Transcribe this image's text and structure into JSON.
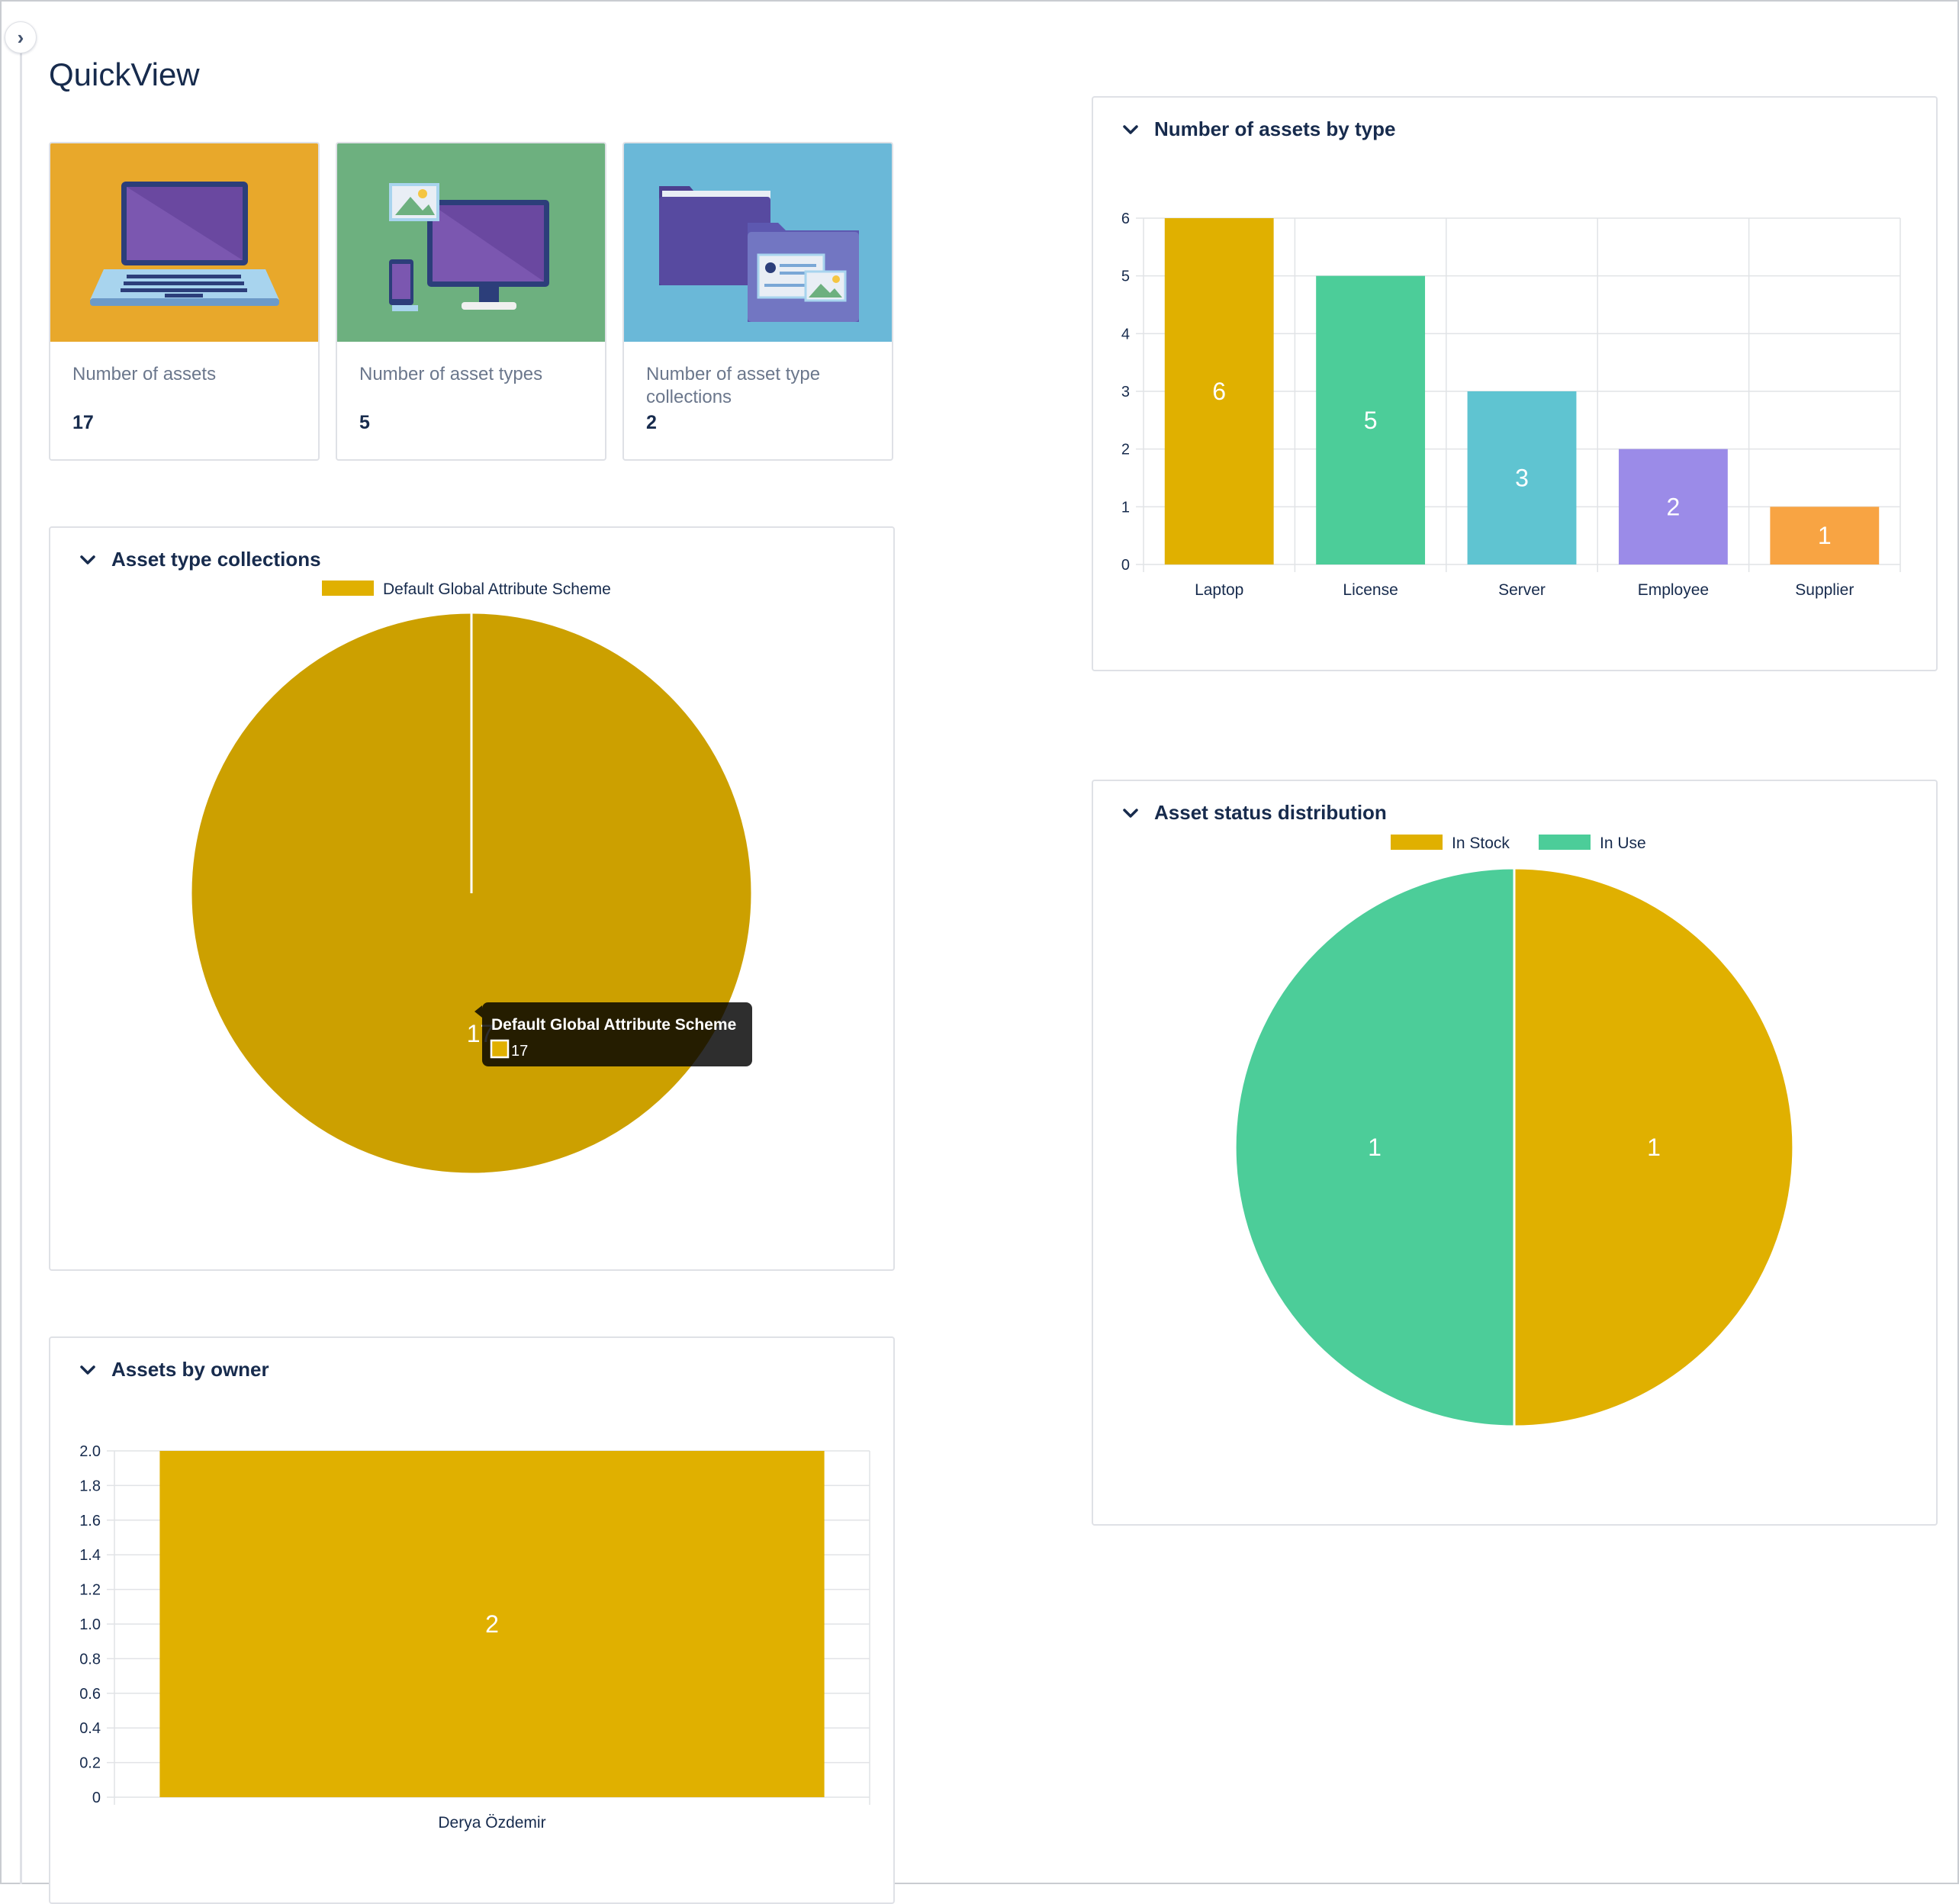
{
  "page": {
    "title": "QuickView"
  },
  "cards": [
    {
      "label": "Number of assets",
      "value": "17",
      "icon": "laptop-illustration",
      "bg": "#e8a82b"
    },
    {
      "label": "Number of asset types",
      "value": "5",
      "icon": "devices-illustration",
      "bg": "#6db07f"
    },
    {
      "label": "Number of asset type collections",
      "value": "2",
      "icon": "folders-illustration",
      "bg": "#6ab8d8"
    }
  ],
  "panels": {
    "collections": {
      "title": "Asset type collections"
    },
    "owner": {
      "title": "Assets by owner"
    },
    "by_type": {
      "title": "Number of assets by type"
    },
    "status": {
      "title": "Asset status distribution"
    }
  },
  "tooltip": {
    "title": "Default Global Attribute Scheme",
    "value": "17"
  },
  "colors": {
    "gold": "#e0b000",
    "gold_hover": "#cca000",
    "green": "#4ccd99",
    "cyan": "#5fc4d1",
    "purple": "#9b8be8",
    "orange": "#f8a443"
  },
  "chart_data": [
    {
      "id": "by_type",
      "type": "bar",
      "title": "Number of assets by type",
      "categories": [
        "Laptop",
        "License",
        "Server",
        "Employee",
        "Supplier"
      ],
      "values": [
        6,
        5,
        3,
        2,
        1
      ],
      "colors": [
        "#e0b000",
        "#4ccd99",
        "#5fc4d1",
        "#9b8be8",
        "#f8a443"
      ],
      "ylim": [
        0,
        6
      ],
      "yticks": [
        "0",
        "1",
        "2",
        "3",
        "4",
        "5",
        "6"
      ],
      "grid": true,
      "legend": "none"
    },
    {
      "id": "collections",
      "type": "pie",
      "title": "Asset type collections",
      "series": [
        {
          "name": "Default Global Attribute Scheme",
          "value": 17,
          "color": "#e0b000"
        }
      ],
      "legend": "top"
    },
    {
      "id": "status",
      "type": "pie",
      "title": "Asset status distribution",
      "series": [
        {
          "name": "In Stock",
          "value": 1,
          "color": "#e0b000"
        },
        {
          "name": "In Use",
          "value": 1,
          "color": "#4ccd99"
        }
      ],
      "legend": "top"
    },
    {
      "id": "owner",
      "type": "bar",
      "title": "Assets by owner",
      "categories": [
        "Derya Özdemir"
      ],
      "values": [
        2
      ],
      "colors": [
        "#e0b000"
      ],
      "ylim": [
        0,
        2
      ],
      "yticks": [
        "0",
        "0.2",
        "0.4",
        "0.6",
        "0.8",
        "1.0",
        "1.2",
        "1.4",
        "1.6",
        "1.8",
        "2.0"
      ],
      "grid": true,
      "legend": "none"
    }
  ]
}
